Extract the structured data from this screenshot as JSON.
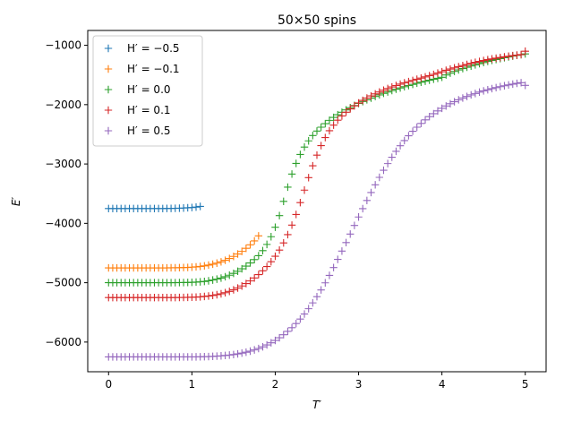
{
  "chart_data": {
    "type": "scatter",
    "marker": "+",
    "title": "50×50 spins",
    "xlabel": "T′",
    "ylabel": "E′",
    "xlim": [
      -0.25,
      5.25
    ],
    "ylim": [
      -6500,
      -750
    ],
    "xticks": [
      0,
      1,
      2,
      3,
      4,
      5
    ],
    "yticks": [
      -6000,
      -5000,
      -4000,
      -3000,
      -2000,
      -1000
    ],
    "xtick_labels": [
      "0",
      "1",
      "2",
      "3",
      "4",
      "5"
    ],
    "ytick_labels": [
      "−6000",
      "−5000",
      "−4000",
      "−3000",
      "−2000",
      "−1000"
    ],
    "grid": false,
    "legend_position": "top-left",
    "series": [
      {
        "name": "H′ = −0.5",
        "color": "#1f77b4",
        "x": [
          0.0,
          0.05,
          0.1,
          0.15,
          0.2,
          0.25,
          0.3,
          0.35,
          0.4,
          0.45,
          0.5,
          0.55,
          0.6,
          0.65,
          0.7,
          0.75,
          0.8,
          0.85,
          0.9,
          0.95,
          1.0,
          1.05,
          1.1
        ],
        "y": [
          -3750,
          -3750,
          -3750,
          -3750,
          -3750,
          -3750,
          -3750,
          -3750,
          -3750,
          -3750,
          -3750,
          -3750,
          -3750,
          -3750,
          -3749,
          -3748,
          -3747,
          -3745,
          -3742,
          -3738,
          -3733,
          -3726,
          -3715
        ]
      },
      {
        "name": "H′ = −0.1",
        "color": "#ff7f0e",
        "x": [
          0.0,
          0.05,
          0.1,
          0.15,
          0.2,
          0.25,
          0.3,
          0.35,
          0.4,
          0.45,
          0.5,
          0.55,
          0.6,
          0.65,
          0.7,
          0.75,
          0.8,
          0.85,
          0.9,
          0.95,
          1.0,
          1.05,
          1.1,
          1.15,
          1.2,
          1.25,
          1.3,
          1.35,
          1.4,
          1.45,
          1.5,
          1.55,
          1.6,
          1.65,
          1.7,
          1.75,
          1.8
        ],
        "y": [
          -4750,
          -4750,
          -4750,
          -4750,
          -4750,
          -4750,
          -4750,
          -4750,
          -4750,
          -4750,
          -4750,
          -4750,
          -4750,
          -4750,
          -4750,
          -4749,
          -4748,
          -4747,
          -4745,
          -4742,
          -4738,
          -4733,
          -4726,
          -4716,
          -4703,
          -4688,
          -4670,
          -4648,
          -4622,
          -4592,
          -4557,
          -4517,
          -4472,
          -4420,
          -4362,
          -4296,
          -4210
        ]
      },
      {
        "name": "H′ = 0.0",
        "color": "#2ca02c",
        "x": [
          0.0,
          0.05,
          0.1,
          0.15,
          0.2,
          0.25,
          0.3,
          0.35,
          0.4,
          0.45,
          0.5,
          0.55,
          0.6,
          0.65,
          0.7,
          0.75,
          0.8,
          0.85,
          0.9,
          0.95,
          1.0,
          1.05,
          1.1,
          1.15,
          1.2,
          1.25,
          1.3,
          1.35,
          1.4,
          1.45,
          1.5,
          1.55,
          1.6,
          1.65,
          1.7,
          1.75,
          1.8,
          1.85,
          1.9,
          1.95,
          2.0,
          2.05,
          2.1,
          2.15,
          2.2,
          2.25,
          2.3,
          2.35,
          2.4,
          2.45,
          2.5,
          2.55,
          2.6,
          2.65,
          2.7,
          2.75,
          2.8,
          2.85,
          2.9,
          2.95,
          3.0,
          3.05,
          3.1,
          3.15,
          3.2,
          3.25,
          3.3,
          3.35,
          3.4,
          3.45,
          3.5,
          3.55,
          3.6,
          3.65,
          3.7,
          3.75,
          3.8,
          3.85,
          3.9,
          3.95,
          4.0,
          4.05,
          4.1,
          4.15,
          4.2,
          4.25,
          4.3,
          4.35,
          4.4,
          4.45,
          4.5,
          4.55,
          4.6,
          4.65,
          4.7,
          4.75,
          4.8,
          4.85,
          4.9,
          4.95,
          5.0
        ],
        "y": [
          -5000,
          -5000,
          -5000,
          -5000,
          -5000,
          -5000,
          -5000,
          -5000,
          -5000,
          -5000,
          -5000,
          -5000,
          -5000,
          -5000,
          -5000,
          -5000,
          -4999,
          -4998,
          -4997,
          -4995,
          -4993,
          -4990,
          -4985,
          -4978,
          -4968,
          -4955,
          -4940,
          -4922,
          -4900,
          -4874,
          -4843,
          -4807,
          -4766,
          -4720,
          -4668,
          -4610,
          -4545,
          -4460,
          -4355,
          -4225,
          -4065,
          -3870,
          -3630,
          -3390,
          -3170,
          -2990,
          -2840,
          -2715,
          -2610,
          -2520,
          -2445,
          -2380,
          -2320,
          -2265,
          -2215,
          -2170,
          -2128,
          -2088,
          -2050,
          -2014,
          -1980,
          -1948,
          -1918,
          -1890,
          -1862,
          -1836,
          -1810,
          -1786,
          -1762,
          -1740,
          -1718,
          -1698,
          -1678,
          -1658,
          -1640,
          -1622,
          -1605,
          -1588,
          -1572,
          -1556,
          -1540,
          -1500,
          -1470,
          -1440,
          -1415,
          -1392,
          -1370,
          -1350,
          -1330,
          -1310,
          -1290,
          -1272,
          -1255,
          -1240,
          -1225,
          -1210,
          -1196,
          -1182,
          -1170,
          -1158,
          -1145
        ]
      },
      {
        "name": "H′ = 0.1",
        "color": "#d62728",
        "x": [
          0.0,
          0.05,
          0.1,
          0.15,
          0.2,
          0.25,
          0.3,
          0.35,
          0.4,
          0.45,
          0.5,
          0.55,
          0.6,
          0.65,
          0.7,
          0.75,
          0.8,
          0.85,
          0.9,
          0.95,
          1.0,
          1.05,
          1.1,
          1.15,
          1.2,
          1.25,
          1.3,
          1.35,
          1.4,
          1.45,
          1.5,
          1.55,
          1.6,
          1.65,
          1.7,
          1.75,
          1.8,
          1.85,
          1.9,
          1.95,
          2.0,
          2.05,
          2.1,
          2.15,
          2.2,
          2.25,
          2.3,
          2.35,
          2.4,
          2.45,
          2.5,
          2.55,
          2.6,
          2.65,
          2.7,
          2.75,
          2.8,
          2.85,
          2.9,
          2.95,
          3.0,
          3.05,
          3.1,
          3.15,
          3.2,
          3.25,
          3.3,
          3.35,
          3.4,
          3.45,
          3.5,
          3.55,
          3.6,
          3.65,
          3.7,
          3.75,
          3.8,
          3.85,
          3.9,
          3.95,
          4.0,
          4.05,
          4.1,
          4.15,
          4.2,
          4.25,
          4.3,
          4.35,
          4.4,
          4.45,
          4.5,
          4.55,
          4.6,
          4.65,
          4.7,
          4.75,
          4.8,
          4.85,
          4.9,
          4.95,
          5.0
        ],
        "y": [
          -5250,
          -5250,
          -5250,
          -5250,
          -5250,
          -5250,
          -5250,
          -5250,
          -5250,
          -5250,
          -5250,
          -5250,
          -5250,
          -5250,
          -5250,
          -5250,
          -5250,
          -5249,
          -5248,
          -5247,
          -5245,
          -5242,
          -5238,
          -5232,
          -5224,
          -5214,
          -5202,
          -5187,
          -5168,
          -5146,
          -5120,
          -5090,
          -5055,
          -5015,
          -4970,
          -4920,
          -4864,
          -4800,
          -4728,
          -4646,
          -4554,
          -4450,
          -4330,
          -4190,
          -4030,
          -3850,
          -3650,
          -3440,
          -3230,
          -3030,
          -2850,
          -2690,
          -2555,
          -2440,
          -2345,
          -2262,
          -2190,
          -2128,
          -2072,
          -2020,
          -1972,
          -1928,
          -1888,
          -1852,
          -1818,
          -1786,
          -1756,
          -1728,
          -1702,
          -1678,
          -1655,
          -1633,
          -1612,
          -1592,
          -1572,
          -1552,
          -1532,
          -1512,
          -1490,
          -1468,
          -1445,
          -1420,
          -1400,
          -1380,
          -1360,
          -1341,
          -1322,
          -1304,
          -1287,
          -1271,
          -1256,
          -1242,
          -1229,
          -1217,
          -1205,
          -1194,
          -1184,
          -1174,
          -1165,
          -1156,
          -1100
        ]
      },
      {
        "name": "H′ = 0.5",
        "color": "#9467bd",
        "x": [
          0.0,
          0.05,
          0.1,
          0.15,
          0.2,
          0.25,
          0.3,
          0.35,
          0.4,
          0.45,
          0.5,
          0.55,
          0.6,
          0.65,
          0.7,
          0.75,
          0.8,
          0.85,
          0.9,
          0.95,
          1.0,
          1.05,
          1.1,
          1.15,
          1.2,
          1.25,
          1.3,
          1.35,
          1.4,
          1.45,
          1.5,
          1.55,
          1.6,
          1.65,
          1.7,
          1.75,
          1.8,
          1.85,
          1.9,
          1.95,
          2.0,
          2.05,
          2.1,
          2.15,
          2.2,
          2.25,
          2.3,
          2.35,
          2.4,
          2.45,
          2.5,
          2.55,
          2.6,
          2.65,
          2.7,
          2.75,
          2.8,
          2.85,
          2.9,
          2.95,
          3.0,
          3.05,
          3.1,
          3.15,
          3.2,
          3.25,
          3.3,
          3.35,
          3.4,
          3.45,
          3.5,
          3.55,
          3.6,
          3.65,
          3.7,
          3.75,
          3.8,
          3.85,
          3.9,
          3.95,
          4.0,
          4.05,
          4.1,
          4.15,
          4.2,
          4.25,
          4.3,
          4.35,
          4.4,
          4.45,
          4.5,
          4.55,
          4.6,
          4.65,
          4.7,
          4.75,
          4.8,
          4.85,
          4.9,
          4.95,
          5.0
        ],
        "y": [
          -6250,
          -6250,
          -6250,
          -6250,
          -6250,
          -6250,
          -6250,
          -6250,
          -6250,
          -6250,
          -6250,
          -6250,
          -6250,
          -6250,
          -6250,
          -6250,
          -6250,
          -6250,
          -6250,
          -6250,
          -6250,
          -6249,
          -6248,
          -6246,
          -6244,
          -6241,
          -6237,
          -6232,
          -6226,
          -6219,
          -6210,
          -6199,
          -6186,
          -6171,
          -6153,
          -6132,
          -6108,
          -6080,
          -6048,
          -6012,
          -5972,
          -5927,
          -5877,
          -5820,
          -5757,
          -5688,
          -5612,
          -5528,
          -5438,
          -5340,
          -5235,
          -5122,
          -5002,
          -4876,
          -4744,
          -4607,
          -4467,
          -4324,
          -4180,
          -4036,
          -3893,
          -3752,
          -3614,
          -3480,
          -3350,
          -3225,
          -3106,
          -2993,
          -2886,
          -2786,
          -2692,
          -2605,
          -2524,
          -2449,
          -2380,
          -2316,
          -2257,
          -2202,
          -2152,
          -2105,
          -2062,
          -2022,
          -1985,
          -1951,
          -1919,
          -1889,
          -1862,
          -1836,
          -1812,
          -1789,
          -1768,
          -1749,
          -1730,
          -1713,
          -1697,
          -1682,
          -1668,
          -1655,
          -1642,
          -1630,
          -1675
        ]
      }
    ]
  }
}
